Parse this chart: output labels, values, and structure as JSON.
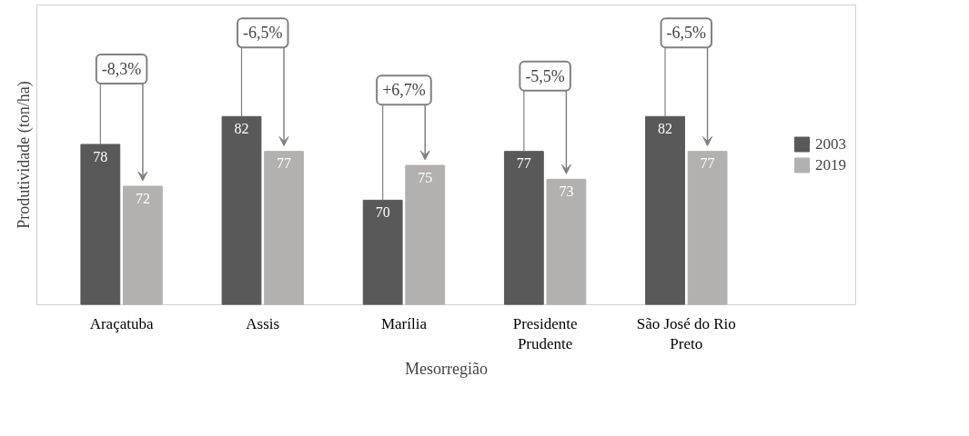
{
  "chart_data": {
    "type": "bar",
    "xlabel": "Mesorregião",
    "ylabel": "Produtividade (ton/ha)",
    "categories": [
      "Araçatuba",
      "Assis",
      "Marília",
      "Presidente Prudente",
      "São José do Rio Preto"
    ],
    "series": [
      {
        "name": "2003",
        "color": "#595959",
        "values": [
          78,
          82,
          70,
          77,
          82
        ]
      },
      {
        "name": "2019",
        "color": "#b3b0b0",
        "values": [
          72,
          77,
          75,
          73,
          77
        ]
      }
    ],
    "ylim": [
      55,
      98
    ],
    "tick_labels": "x",
    "grid": false,
    "legend": "right",
    "data_labels": true,
    "annotations": [
      "-8,3%",
      "-6,5%",
      "+6,7%",
      "-5,5%",
      "-6,5%"
    ]
  }
}
